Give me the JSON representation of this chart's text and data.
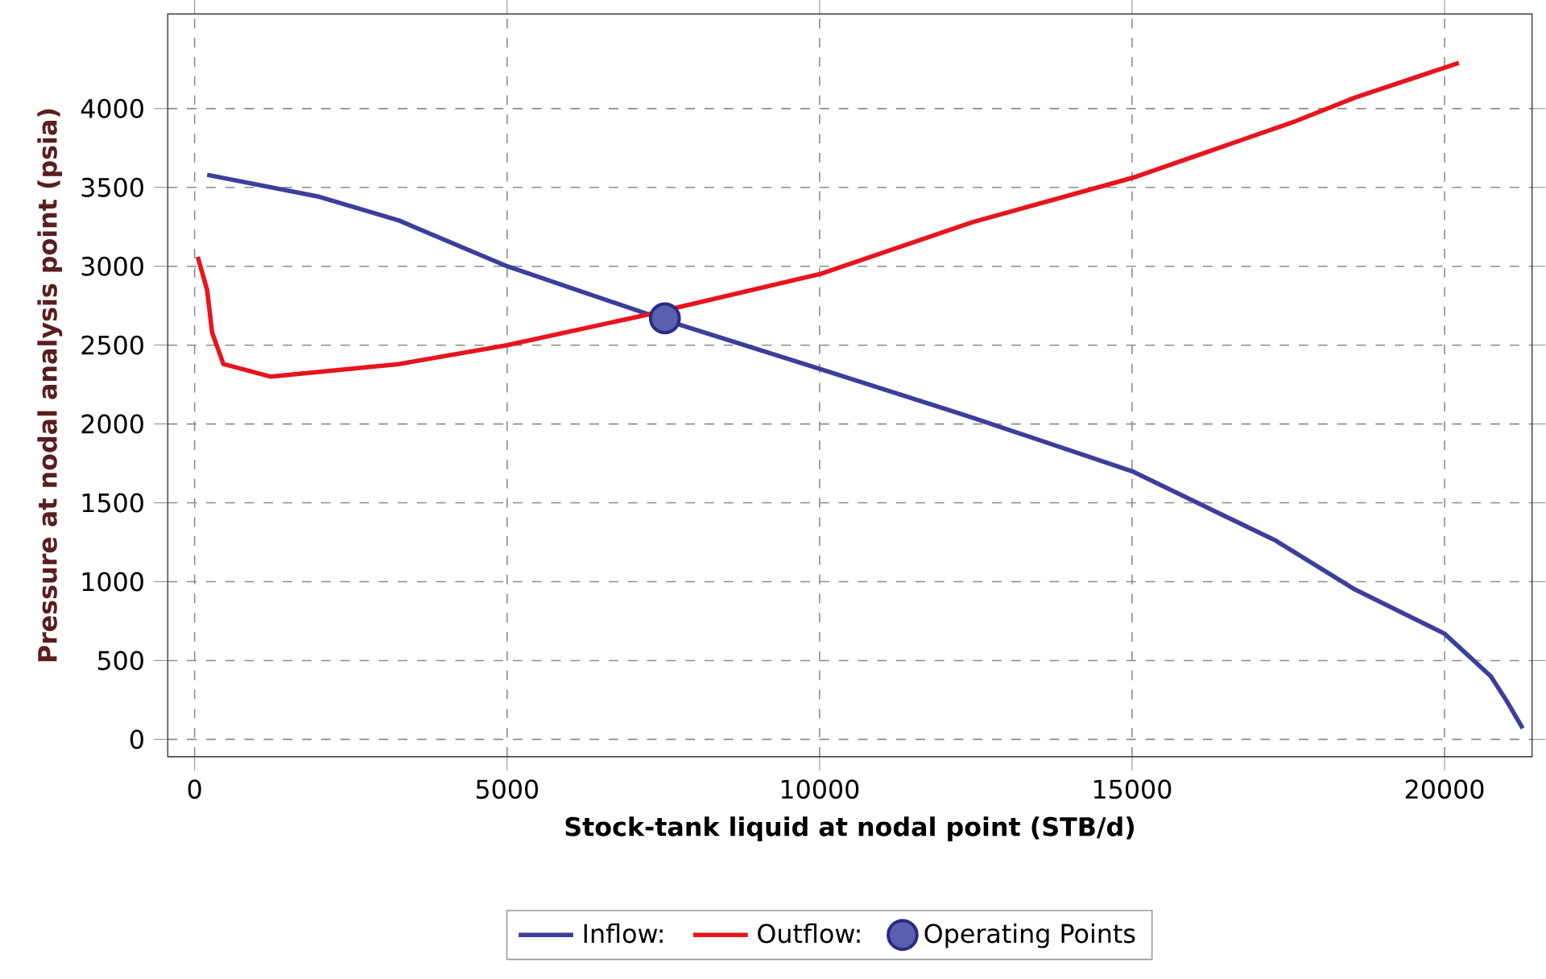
{
  "chart_data": {
    "type": "line",
    "xlabel": "Stock-tank liquid at nodal point (STB/d)",
    "ylabel": "Pressure at nodal analysis point (psia)",
    "xlim": [
      -430,
      21400
    ],
    "ylim": [
      -110,
      4600
    ],
    "xticks": [
      0,
      5000,
      10000,
      15000,
      20000
    ],
    "yticks": [
      0,
      500,
      1000,
      1500,
      2000,
      2500,
      3000,
      3500,
      4000
    ],
    "grid": true,
    "legend": "bottom",
    "line_style": "solid",
    "series": [
      {
        "name": "Inflow:",
        "marker": "none",
        "color": "#3b3f9c",
        "x": [
          200,
          2000,
          3270,
          5000,
          7600,
          10000,
          12450,
          15000,
          17300,
          18570,
          20000,
          20740,
          21000,
          21250
        ],
        "values": [
          3580,
          3440,
          3290,
          3000,
          2650,
          2350,
          2040,
          1700,
          1260,
          950,
          670,
          400,
          240,
          70
        ]
      },
      {
        "name": "Outflow:",
        "marker": "none",
        "color": "#e8141e",
        "x": [
          50,
          200,
          280,
          460,
          1220,
          3270,
          5000,
          7090,
          10000,
          12450,
          15000,
          17550,
          18570,
          20230
        ],
        "values": [
          3060,
          2850,
          2580,
          2380,
          2300,
          2380,
          2500,
          2680,
          2950,
          3280,
          3560,
          3910,
          4070,
          4290
        ]
      },
      {
        "name": "Operating Points",
        "type": "scatter",
        "marker": "circle",
        "color": "#5b5fb0",
        "x": [
          7525
        ],
        "values": [
          2670
        ]
      }
    ]
  }
}
